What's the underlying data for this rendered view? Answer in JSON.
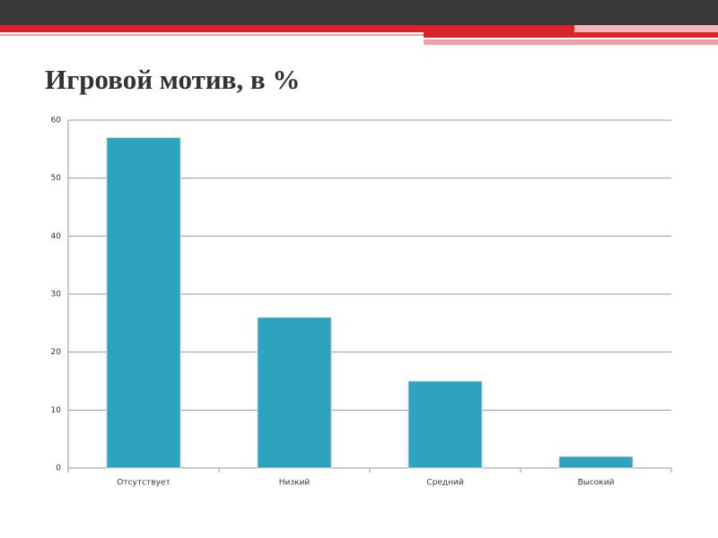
{
  "chart_data": {
    "type": "bar",
    "title": "Игровой мотив, в %",
    "categories": [
      "Отсутствует",
      "Низкий",
      "Средний",
      "Высокий"
    ],
    "values": [
      57,
      26,
      15,
      2
    ],
    "color": "#2ea3c0",
    "ylim": [
      0,
      60
    ],
    "yticks": [
      0,
      10,
      20,
      30,
      40,
      50,
      60
    ],
    "grid": true
  }
}
